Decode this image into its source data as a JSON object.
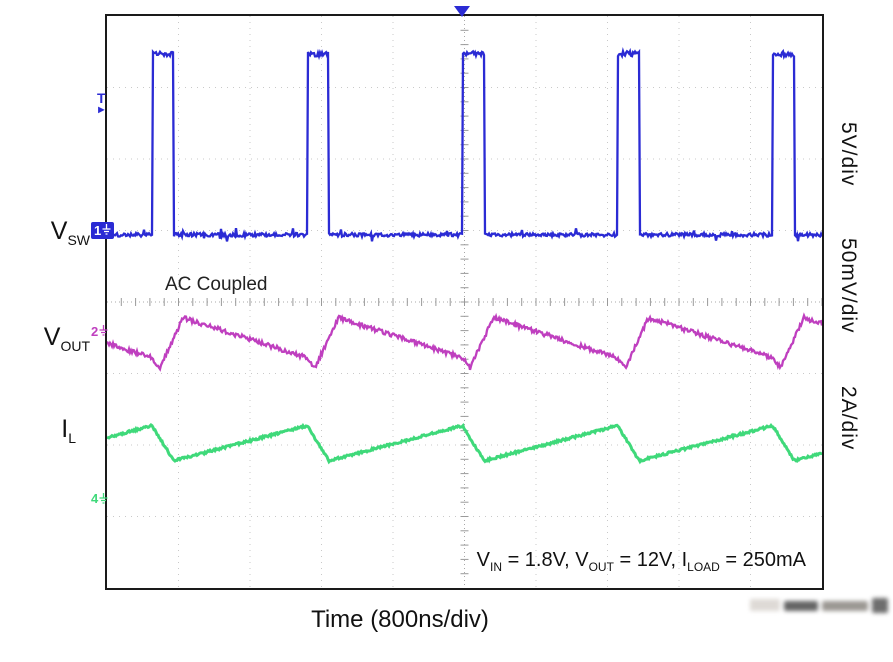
{
  "scope": {
    "left_labels": [
      {
        "id": "vsw",
        "main": "V",
        "sub": "SW"
      },
      {
        "id": "vout",
        "main": "V",
        "sub": "OUT"
      },
      {
        "id": "il",
        "main": "I",
        "sub": "L"
      }
    ],
    "right_scale_labels": [
      "5V/div",
      "50mV/div",
      "2A/div"
    ],
    "ac_coupled_note": "AC Coupled",
    "conditions_segments": [
      {
        "t": "V"
      },
      {
        "sub": "IN"
      },
      {
        "t": " = 1.8V, V"
      },
      {
        "sub": "OUT"
      },
      {
        "t": " = 12V, I"
      },
      {
        "sub": "LOAD"
      },
      {
        "t": " = 250mA"
      }
    ],
    "channel_markers": [
      {
        "ch": "1",
        "color": "#2b2bd4",
        "y_div": 3.06,
        "filled": true,
        "ground": true
      },
      {
        "ch": "2",
        "color": "#bf3fbf",
        "y_div": 4.5,
        "filled": false,
        "ground": true
      },
      {
        "ch": "4",
        "color": "#3fd97a",
        "y_div": 6.84,
        "filled": false,
        "ground": true
      }
    ],
    "trigger": {
      "marker": "T",
      "color": "#2b2bd4",
      "x_div": 5.0,
      "y_div": 1.25
    }
  },
  "chart_data": {
    "type": "line",
    "title": "",
    "xlabel": "Time (800ns/div)",
    "ylabel": "",
    "x_divisions": 10,
    "y_divisions": 8,
    "time_per_div": "800ns",
    "grid": "dotted graticule with center crosshair ticks",
    "timing": {
      "period_div": 2.17,
      "first_edge_div": 0.63,
      "duty_high": 0.14,
      "cycles_visible": 5
    },
    "series": [
      {
        "name": "VSW",
        "scale": "5V/div",
        "color": "#2b2bd4",
        "shape": "pulse",
        "baseline_div": 3.06,
        "high_div": 0.53,
        "description": "Switch-node voltage: narrow ~12V positive pulses, noisy flat baseline"
      },
      {
        "name": "VOUT",
        "scale": "50mV/div",
        "color": "#bf3fbf",
        "shape": "ripple",
        "peak_div": 4.22,
        "trough_div": 4.78,
        "dip_div": 4.92,
        "description": "AC-coupled output ripple: small negative spike at switching, fast rise to peak, slow decay"
      },
      {
        "name": "IL",
        "scale": "2A/div",
        "color": "#3fd97a",
        "shape": "sawtooth",
        "peak_div": 5.73,
        "trough_div": 6.22,
        "description": "Inductor current: fast fall during switch pulse, slow ramp up between pulses"
      }
    ],
    "annotations": [
      "AC Coupled",
      "VIN = 1.8V, VOUT = 12V, ILOAD = 250mA"
    ]
  }
}
